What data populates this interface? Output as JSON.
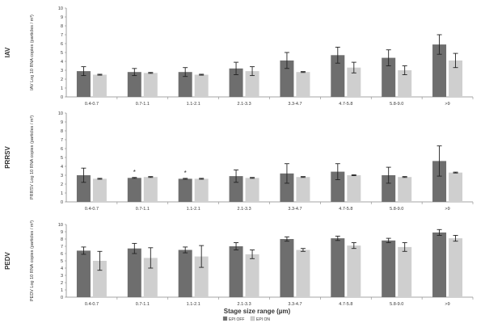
{
  "chart_data": [
    {
      "type": "bar",
      "panel_label": "IAV",
      "ylabel": "IAV Log 10 RNA copies (particles / m³)",
      "ylim": [
        0,
        10
      ],
      "yticks": [
        "0",
        "1",
        "2",
        "3",
        "4",
        "5",
        "6",
        "7",
        "8",
        "9",
        "10"
      ],
      "categories": [
        "0.4-0.7",
        "0.7-1.1",
        "1.1-2.1",
        "2.1-3.3",
        "3.3-4.7",
        "4.7-5.8",
        "5.8-9.0",
        ">9"
      ],
      "series": [
        {
          "name": "EPI OFF",
          "color": "#6e6e6e",
          "values": [
            2.9,
            2.8,
            2.8,
            3.2,
            4.1,
            4.7,
            4.4,
            5.9
          ],
          "errors": [
            0.5,
            0.4,
            0.5,
            0.7,
            0.9,
            0.9,
            0.9,
            1.1
          ]
        },
        {
          "name": "EPI ON",
          "color": "#cfcfcf",
          "values": [
            2.5,
            2.7,
            2.5,
            2.9,
            2.8,
            3.3,
            3.0,
            4.1
          ],
          "errors": [
            0.05,
            0.05,
            0.05,
            0.5,
            0.05,
            0.6,
            0.5,
            0.8
          ]
        }
      ],
      "annotations": []
    },
    {
      "type": "bar",
      "panel_label": "PRRSV",
      "ylabel": "PRRSV Log 10 RNA copies (particles / m³)",
      "ylim": [
        0,
        10
      ],
      "yticks": [
        "0",
        "1",
        "2",
        "3",
        "4",
        "5",
        "6",
        "7",
        "8",
        "9",
        "10"
      ],
      "categories": [
        "0.4-0.7",
        "0.7-1.1",
        "1.1-2.1",
        "2.1-3.3",
        "3.3-4.7",
        "4.7-5.8",
        "5.8-9.0",
        ">9"
      ],
      "series": [
        {
          "name": "EPI OFF",
          "color": "#6e6e6e",
          "values": [
            3.0,
            2.7,
            2.6,
            2.9,
            3.2,
            3.4,
            3.0,
            4.6
          ],
          "errors": [
            0.8,
            0.05,
            0.05,
            0.7,
            1.1,
            0.9,
            0.9,
            1.7
          ]
        },
        {
          "name": "EPI ON",
          "color": "#cfcfcf",
          "values": [
            2.6,
            2.8,
            2.6,
            2.7,
            2.8,
            3.0,
            2.8,
            3.3
          ],
          "errors": [
            0.05,
            0.05,
            0.05,
            0.05,
            0.05,
            0.05,
            0.05,
            0.05
          ]
        }
      ],
      "annotations": [
        {
          "category": "0.7-1.1",
          "text": "*"
        },
        {
          "category": "1.1-2.1",
          "text": "*"
        }
      ]
    },
    {
      "type": "bar",
      "panel_label": "PEDV",
      "ylabel": "PEDV Log 10 RNA copies (particles / m³)",
      "ylim": [
        0,
        10
      ],
      "yticks": [
        "0",
        "1",
        "2",
        "3",
        "4",
        "5",
        "6",
        "7",
        "8",
        "9",
        "10"
      ],
      "categories": [
        "0.4-0.7",
        "0.7-1.1",
        "1.1-2.1",
        "2.1-3.3",
        "3.3-4.7",
        "4.7-5.8",
        "5.8-9.0",
        ">9"
      ],
      "series": [
        {
          "name": "EPI OFF",
          "color": "#6e6e6e",
          "values": [
            6.4,
            6.7,
            6.5,
            7.0,
            8.0,
            8.1,
            7.8,
            8.9
          ],
          "errors": [
            0.5,
            0.7,
            0.4,
            0.5,
            0.3,
            0.3,
            0.3,
            0.4
          ]
        },
        {
          "name": "EPI ON",
          "color": "#cfcfcf",
          "values": [
            5.0,
            5.4,
            5.6,
            5.9,
            6.5,
            7.1,
            6.9,
            8.1
          ],
          "errors": [
            1.3,
            1.4,
            1.5,
            0.6,
            0.2,
            0.4,
            0.6,
            0.4
          ]
        }
      ],
      "annotations": []
    }
  ],
  "xlabel": "Stage size range (µm)",
  "legend": {
    "placement": "bottom-center",
    "items": [
      "EPI OFF",
      "EPI ON"
    ]
  }
}
